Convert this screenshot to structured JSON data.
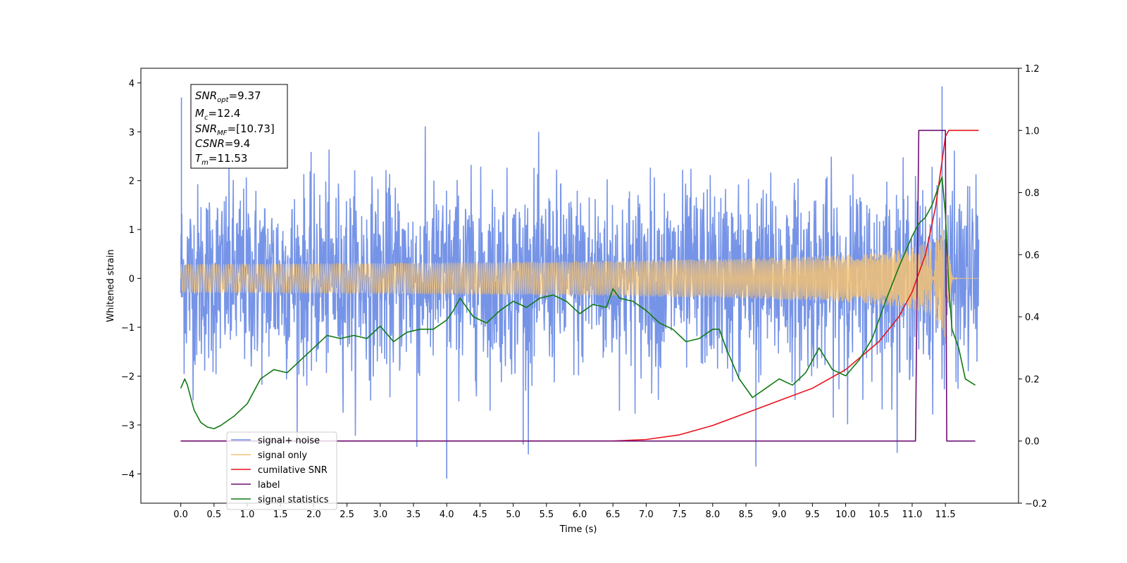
{
  "chart_data": {
    "type": "line",
    "xlabel": "Time (s)",
    "ylabel_left": "Whitened strain",
    "ylabel_right": "",
    "xlim": [
      -0.6,
      12.6
    ],
    "ylim_left": [
      -4.6,
      4.3
    ],
    "ylim_right": [
      -0.2,
      1.2
    ],
    "x_ticks": [
      "0.0",
      "0.5",
      "1.0",
      "1.5",
      "2.0",
      "2.5",
      "3.0",
      "3.5",
      "4.0",
      "4.5",
      "5.0",
      "5.5",
      "6.0",
      "6.5",
      "7.0",
      "7.5",
      "8.0",
      "8.5",
      "9.0",
      "9.5",
      "10.0",
      "10.5",
      "11.0",
      "11.5"
    ],
    "y_ticks_left": [
      "4",
      "3",
      "2",
      "1",
      "0",
      "−1",
      "−2",
      "−3",
      "−4"
    ],
    "y_ticks_right": [
      "1.2",
      "1.0",
      "0.8",
      "0.6",
      "0.4",
      "0.2",
      "0.0",
      "−0.2"
    ],
    "grid": false,
    "legend_position": "lower-left",
    "annotation": {
      "snr_opt": {
        "sym": "SNR",
        "sub": "opt",
        "val": "=9.37"
      },
      "mc": {
        "sym": "M",
        "sub": "c",
        "val": "=12.4"
      },
      "snr_mf": {
        "sym": "SNR",
        "sub": "MF",
        "val": "=[10.73]"
      },
      "csnr": {
        "sym": "CSNR",
        "sub": "",
        "val": "=9.4"
      },
      "tm": {
        "sym": "T",
        "sub": "m",
        "val": "=11.53"
      }
    },
    "series": [
      {
        "name": "signal+ noise",
        "axis": "left",
        "color": "#6f8ee6",
        "envelope_sigma": 0.95,
        "t_start": 0.0,
        "t_end": 12.0,
        "outlier_max": 3.93,
        "outlier_min": -4.1
      },
      {
        "name": "signal only",
        "axis": "left",
        "color": "#f5c273",
        "chirp_t_merge": 11.53,
        "chirp_peak_amplitude": 1.6
      },
      {
        "name": "cumilative SNR",
        "axis": "right",
        "color": "#e8121b",
        "x": [
          0.0,
          6.5,
          7.0,
          7.5,
          8.0,
          8.5,
          9.0,
          9.5,
          10.0,
          10.5,
          10.8,
          11.0,
          11.2,
          11.35,
          11.45,
          11.5,
          11.55,
          12.0
        ],
        "y": [
          0.0,
          0.0,
          0.005,
          0.02,
          0.05,
          0.09,
          0.13,
          0.17,
          0.23,
          0.32,
          0.4,
          0.48,
          0.6,
          0.75,
          0.9,
          0.98,
          1.0,
          1.0
        ]
      },
      {
        "name": "label",
        "axis": "right",
        "color": "#6e0f74",
        "x": [
          0.0,
          11.05,
          11.1,
          11.5,
          11.52,
          11.55,
          11.95
        ],
        "y": [
          0.0,
          0.0,
          1.0,
          1.0,
          0.0,
          0.0,
          0.0
        ]
      },
      {
        "name": "signal statistics",
        "axis": "right",
        "color": "#107a13",
        "x": [
          0.0,
          0.06,
          0.1,
          0.2,
          0.3,
          0.4,
          0.5,
          0.6,
          0.8,
          1.0,
          1.2,
          1.4,
          1.6,
          1.8,
          2.0,
          2.2,
          2.4,
          2.6,
          2.8,
          3.0,
          3.2,
          3.4,
          3.6,
          3.8,
          4.0,
          4.1,
          4.2,
          4.4,
          4.6,
          4.8,
          5.0,
          5.2,
          5.4,
          5.6,
          5.8,
          6.0,
          6.2,
          6.4,
          6.5,
          6.6,
          6.8,
          7.0,
          7.2,
          7.4,
          7.6,
          7.8,
          8.0,
          8.1,
          8.2,
          8.4,
          8.6,
          8.8,
          9.0,
          9.2,
          9.4,
          9.6,
          9.8,
          10.0,
          10.2,
          10.4,
          10.6,
          10.8,
          11.0,
          11.1,
          11.2,
          11.3,
          11.4,
          11.45,
          11.5,
          11.55,
          11.6,
          11.7,
          11.8,
          11.95
        ],
        "y": [
          0.17,
          0.2,
          0.18,
          0.1,
          0.06,
          0.045,
          0.04,
          0.05,
          0.08,
          0.12,
          0.2,
          0.23,
          0.22,
          0.26,
          0.3,
          0.34,
          0.33,
          0.34,
          0.33,
          0.37,
          0.32,
          0.35,
          0.36,
          0.36,
          0.39,
          0.42,
          0.46,
          0.4,
          0.38,
          0.42,
          0.45,
          0.43,
          0.46,
          0.47,
          0.45,
          0.41,
          0.44,
          0.43,
          0.49,
          0.46,
          0.45,
          0.42,
          0.38,
          0.36,
          0.32,
          0.33,
          0.36,
          0.36,
          0.3,
          0.2,
          0.14,
          0.17,
          0.2,
          0.18,
          0.22,
          0.3,
          0.23,
          0.21,
          0.26,
          0.33,
          0.45,
          0.56,
          0.66,
          0.7,
          0.72,
          0.76,
          0.82,
          0.85,
          0.73,
          0.5,
          0.36,
          0.3,
          0.2,
          0.18
        ]
      }
    ]
  }
}
